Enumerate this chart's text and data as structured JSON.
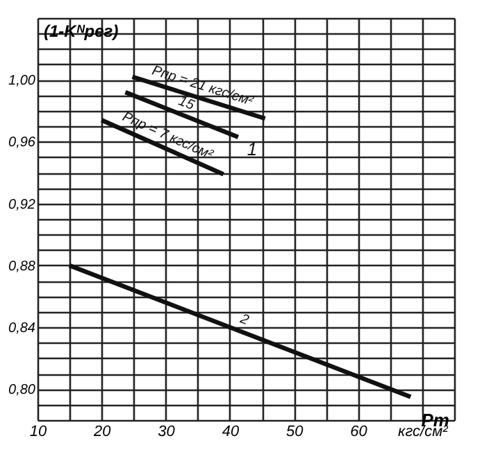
{
  "chart_data": {
    "type": "line",
    "xlabel": "Pт",
    "ylabel": "(1-Kᴺрег)",
    "series": [
      {
        "name": "Pпр = 21 кгс/см²",
        "color": "#111111",
        "x": [
          24.8,
          45.5
        ],
        "values": [
          1.002,
          0.975
        ]
      },
      {
        "name": "15",
        "color": "#111111",
        "x": [
          23.7,
          41.3
        ],
        "values": [
          0.992,
          0.963
        ]
      },
      {
        "name": "Pпр = 7 кгс/см²",
        "color": "#111111",
        "x": [
          20,
          39
        ],
        "values": [
          0.974,
          0.939
        ]
      },
      {
        "name": "2",
        "color": "#111111",
        "x": [
          15,
          68.2
        ],
        "values": [
          0.88,
          0.795
        ]
      }
    ],
    "annotations": [
      "1"
    ],
    "xlim": [
      10,
      75
    ],
    "ylim": [
      0.78,
      1.04
    ],
    "xticks": [
      10,
      {
        "value": 15,
        "label": null
      },
      20,
      {
        "value": 25,
        "label": null
      },
      30,
      {
        "value": 35,
        "label": null
      },
      40,
      {
        "value": 45,
        "label": null
      },
      50,
      {
        "value": 55,
        "label": null
      },
      60,
      {
        "value": 65,
        "label": null
      },
      {
        "value": 70,
        "label": "кгс/см²"
      },
      {
        "value": 75,
        "label": null
      }
    ],
    "yticks": [
      {
        "value": 0.78,
        "label": null
      },
      {
        "value": 0.79,
        "label": null
      },
      {
        "value": 0.8,
        "label": "0,80"
      },
      {
        "value": 0.81,
        "label": null
      },
      {
        "value": 0.82,
        "label": null
      },
      {
        "value": 0.83,
        "label": null
      },
      {
        "value": 0.84,
        "label": "0,84"
      },
      {
        "value": 0.85,
        "label": null
      },
      {
        "value": 0.86,
        "label": null
      },
      {
        "value": 0.87,
        "label": null
      },
      {
        "value": 0.88,
        "label": "0,88"
      },
      {
        "value": 0.89,
        "label": null
      },
      {
        "value": 0.9,
        "label": null
      },
      {
        "value": 0.91,
        "label": null
      },
      {
        "value": 0.92,
        "label": "0,92"
      },
      {
        "value": 0.93,
        "label": null
      },
      {
        "value": 0.94,
        "label": null
      },
      {
        "value": 0.95,
        "label": null
      },
      {
        "value": 0.96,
        "label": "0,96"
      },
      {
        "value": 0.97,
        "label": null
      },
      {
        "value": 0.98,
        "label": null
      },
      {
        "value": 0.99,
        "label": null
      },
      {
        "value": 1.0,
        "label": "1,00"
      },
      {
        "value": 1.01,
        "label": null
      },
      {
        "value": 1.02,
        "label": null
      },
      {
        "value": 1.03,
        "label": null
      },
      {
        "value": 1.04,
        "label": null
      }
    ],
    "grid": true,
    "marker": "none",
    "line_style": "solid"
  }
}
